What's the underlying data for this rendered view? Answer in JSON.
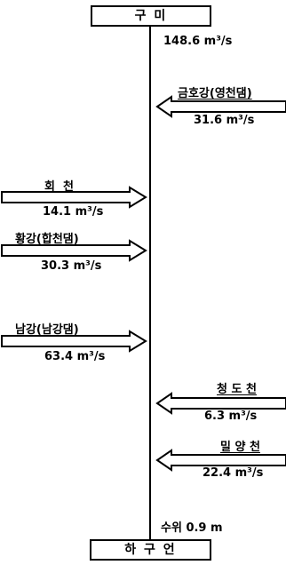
{
  "top_box": "구  미",
  "bottom_box": "하 구 언",
  "top_flow": "148.6 m³/s",
  "stage_label": "수위 0.9 m",
  "inflows": [
    {
      "name": "금호강(영천댐)",
      "value": "31.6 m³/s",
      "side": "right"
    },
    {
      "name": "회  천",
      "value": "14.1 m³/s",
      "side": "left"
    },
    {
      "name": "황강(합천댐)",
      "value": "30.3 m³/s",
      "side": "left"
    },
    {
      "name": "남강(남강댐)",
      "value": "63.4 m³/s",
      "side": "left"
    },
    {
      "name": "청 도 천",
      "value": "6.3 m³/s",
      "side": "right"
    },
    {
      "name": "밀 양 천",
      "value": "22.4 m³/s",
      "side": "right"
    }
  ]
}
